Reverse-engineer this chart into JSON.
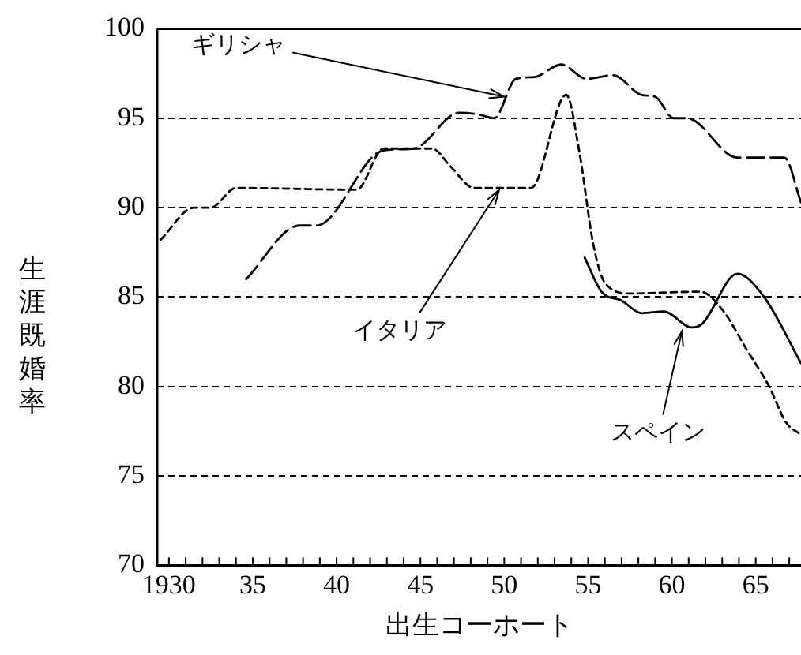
{
  "chart_data": {
    "type": "line",
    "xlabel": "出生コーホート",
    "ylabel": "生涯既婚率",
    "xlim": [
      1929.3,
      1967.7
    ],
    "ylim": [
      70,
      100
    ],
    "xticks": [
      {
        "value": 1930,
        "label": "1930"
      },
      {
        "value": 1931,
        "label": null
      },
      {
        "value": 1932,
        "label": null
      },
      {
        "value": 1933,
        "label": null
      },
      {
        "value": 1934,
        "label": null
      },
      {
        "value": 1935,
        "label": "35"
      },
      {
        "value": 1936,
        "label": null
      },
      {
        "value": 1937,
        "label": null
      },
      {
        "value": 1938,
        "label": null
      },
      {
        "value": 1939,
        "label": null
      },
      {
        "value": 1940,
        "label": "40"
      },
      {
        "value": 1941,
        "label": null
      },
      {
        "value": 1942,
        "label": null
      },
      {
        "value": 1943,
        "label": null
      },
      {
        "value": 1944,
        "label": null
      },
      {
        "value": 1945,
        "label": "45"
      },
      {
        "value": 1946,
        "label": null
      },
      {
        "value": 1947,
        "label": null
      },
      {
        "value": 1948,
        "label": null
      },
      {
        "value": 1949,
        "label": null
      },
      {
        "value": 1950,
        "label": "50"
      },
      {
        "value": 1951,
        "label": null
      },
      {
        "value": 1952,
        "label": null
      },
      {
        "value": 1953,
        "label": null
      },
      {
        "value": 1954,
        "label": null
      },
      {
        "value": 1955,
        "label": "55"
      },
      {
        "value": 1956,
        "label": null
      },
      {
        "value": 1957,
        "label": null
      },
      {
        "value": 1958,
        "label": null
      },
      {
        "value": 1959,
        "label": null
      },
      {
        "value": 1960,
        "label": "60"
      },
      {
        "value": 1961,
        "label": null
      },
      {
        "value": 1962,
        "label": null
      },
      {
        "value": 1963,
        "label": null
      },
      {
        "value": 1964,
        "label": null
      },
      {
        "value": 1965,
        "label": "65"
      },
      {
        "value": 1966,
        "label": null
      },
      {
        "value": 1967,
        "label": null
      }
    ],
    "yticks": [
      70,
      75,
      80,
      85,
      90,
      95,
      100
    ],
    "grid": "y",
    "legend": false,
    "marker": "none",
    "series": [
      {
        "color": "#000000",
        "line_style": "dashed",
        "x": [
          1934.6,
          1937.8,
          1938.8,
          1942.8,
          1944.6,
          1947.3,
          1948.5,
          1949.4,
          1950.7,
          1951.8,
          1953.4,
          1954.9,
          1956.5,
          1958.2,
          1959.0,
          1960.1,
          1960.9,
          1963.9,
          1966.7,
          1967.7
        ],
        "values": [
          86,
          89,
          89,
          93.2,
          93.3,
          95.3,
          95.2,
          95,
          97.2,
          97.3,
          98,
          97.2,
          97.4,
          96.3,
          96.2,
          95,
          95,
          92.8,
          92.8,
          90.3
        ]
      },
      {
        "color": "#000000",
        "line_style": "dotted",
        "x": [
          1929.5,
          1931.5,
          1932.5,
          1934,
          1941.2,
          1942.8,
          1945.7,
          1946.8,
          1948.2,
          1951.6,
          1953.7,
          1954.5,
          1955.3,
          1956,
          1957.5,
          1961.7,
          1963,
          1964.5,
          1965.8,
          1966.8,
          1967.7
        ],
        "values": [
          88.2,
          90,
          90,
          91.1,
          91,
          93.3,
          93.3,
          92.3,
          91.1,
          91.1,
          96.3,
          93,
          88,
          85.8,
          85.2,
          85.3,
          84.3,
          82,
          80,
          78,
          77.3
        ]
      },
      {
        "color": "#000000",
        "line_style": "solid",
        "x": [
          1954.8,
          1955.8,
          1957,
          1958.2,
          1959.5,
          1961.2,
          1961.8,
          1963.9,
          1965.5,
          1967.7
        ],
        "values": [
          87.2,
          85.3,
          84.8,
          84.1,
          84.2,
          83.3,
          83.5,
          86.3,
          85,
          81.3
        ]
      }
    ],
    "annotations": [
      {
        "text": "ギリシャ",
        "x": 1950,
        "y": 96.2
      },
      {
        "text": "イタリア",
        "x": 1949.7,
        "y": 91
      },
      {
        "text": "スペイン",
        "x": 1960.6,
        "y": 83.1
      }
    ]
  }
}
